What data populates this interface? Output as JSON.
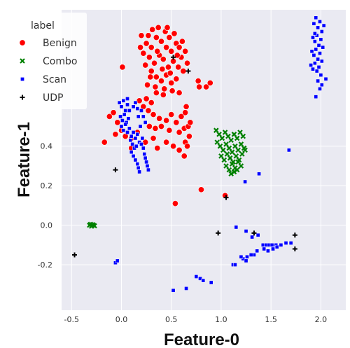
{
  "chart_data": {
    "type": "scatter",
    "xlabel": "Feature-0",
    "ylabel": "Feature-1",
    "xlim": [
      -0.6,
      2.25
    ],
    "ylim": [
      -0.43,
      1.09
    ],
    "x_ticks": [
      -0.5,
      0.0,
      0.5,
      1.0,
      1.5,
      2.0
    ],
    "y_ticks": [
      -0.2,
      0.0,
      0.2,
      0.4
    ],
    "x_tick_labels": [
      "-0.5",
      "0.0",
      "0.5",
      "1.0",
      "1.5",
      "2.0"
    ],
    "y_tick_labels": [
      "-0.2",
      "0.0",
      "0.2",
      "0.4"
    ],
    "grid": true,
    "legend": {
      "title": "label",
      "position": "top-left"
    },
    "series": [
      {
        "name": "Benign",
        "marker": "circle",
        "color": "#ff0000",
        "points": [
          [
            0.2,
            0.96
          ],
          [
            0.25,
            0.92
          ],
          [
            0.3,
            0.9
          ],
          [
            0.35,
            0.95
          ],
          [
            0.4,
            0.93
          ],
          [
            0.45,
            0.9
          ],
          [
            0.5,
            0.88
          ],
          [
            0.55,
            0.92
          ],
          [
            0.6,
            0.85
          ],
          [
            0.22,
            0.87
          ],
          [
            0.28,
            0.85
          ],
          [
            0.33,
            0.82
          ],
          [
            0.38,
            0.86
          ],
          [
            0.42,
            0.84
          ],
          [
            0.47,
            0.8
          ],
          [
            0.52,
            0.83
          ],
          [
            0.57,
            0.8
          ],
          [
            0.62,
            0.78
          ],
          [
            0.3,
            0.78
          ],
          [
            0.35,
            0.75
          ],
          [
            0.4,
            0.73
          ],
          [
            0.45,
            0.76
          ],
          [
            0.5,
            0.72
          ],
          [
            0.55,
            0.74
          ],
          [
            0.26,
            0.71
          ],
          [
            0.34,
            0.7
          ],
          [
            0.43,
            0.69
          ],
          [
            0.31,
            0.99
          ],
          [
            0.37,
            1.0
          ],
          [
            0.44,
            0.98
          ],
          [
            0.48,
            0.95
          ],
          [
            0.53,
            0.97
          ],
          [
            0.58,
            0.9
          ],
          [
            0.64,
            0.88
          ],
          [
            0.66,
            0.82
          ],
          [
            0.24,
            0.81
          ],
          [
            0.19,
            0.9
          ],
          [
            0.36,
            0.88
          ],
          [
            0.41,
            0.79
          ],
          [
            0.49,
            0.77
          ],
          [
            0.29,
            0.75
          ],
          [
            0.56,
            0.86
          ],
          [
            0.61,
            0.93
          ],
          [
            0.27,
            0.96
          ],
          [
            0.46,
            1.0
          ],
          [
            0.01,
            0.8
          ],
          [
            0.77,
            0.73
          ],
          [
            0.85,
            0.7
          ],
          [
            0.89,
            0.72
          ],
          [
            0.78,
            0.7
          ],
          [
            0.35,
            0.67
          ],
          [
            0.42,
            0.66
          ],
          [
            0.25,
            0.64
          ],
          [
            0.3,
            0.62
          ],
          [
            0.18,
            0.63
          ],
          [
            0.58,
            0.67
          ],
          [
            0.51,
            0.68
          ],
          [
            -0.12,
            0.55
          ],
          [
            -0.08,
            0.57
          ],
          [
            -0.04,
            0.52
          ],
          [
            0.22,
            0.6
          ],
          [
            0.27,
            0.58
          ],
          [
            0.32,
            0.56
          ],
          [
            0.38,
            0.54
          ],
          [
            0.45,
            0.53
          ],
          [
            0.5,
            0.56
          ],
          [
            0.55,
            0.52
          ],
          [
            0.6,
            0.55
          ],
          [
            0.64,
            0.57
          ],
          [
            0.65,
            0.6
          ],
          [
            0.28,
            0.5
          ],
          [
            0.34,
            0.49
          ],
          [
            0.4,
            0.5
          ],
          [
            0.48,
            0.48
          ],
          [
            0.58,
            0.47
          ],
          [
            0.63,
            0.49
          ],
          [
            0.67,
            0.5
          ],
          [
            0.69,
            0.52
          ],
          [
            -0.06,
            0.46
          ],
          [
            0.0,
            0.48
          ],
          [
            0.04,
            0.45
          ],
          [
            0.1,
            0.44
          ],
          [
            0.16,
            0.47
          ],
          [
            0.24,
            0.42
          ],
          [
            0.32,
            0.44
          ],
          [
            0.45,
            0.42
          ],
          [
            0.52,
            0.4
          ],
          [
            0.58,
            0.38
          ],
          [
            0.64,
            0.42
          ],
          [
            0.68,
            0.45
          ],
          [
            -0.17,
            0.42
          ],
          [
            0.1,
            0.39
          ],
          [
            0.36,
            0.39
          ],
          [
            0.63,
            0.35
          ],
          [
            0.66,
            0.4
          ],
          [
            0.8,
            0.18
          ],
          [
            1.04,
            0.15
          ],
          [
            0.54,
            0.11
          ]
        ]
      },
      {
        "name": "Combo",
        "marker": "x",
        "color": "#008000",
        "points": [
          [
            0.95,
            0.48
          ],
          [
            0.98,
            0.46
          ],
          [
            1.01,
            0.44
          ],
          [
            1.04,
            0.47
          ],
          [
            1.07,
            0.45
          ],
          [
            1.1,
            0.43
          ],
          [
            1.13,
            0.46
          ],
          [
            1.16,
            0.44
          ],
          [
            1.19,
            0.47
          ],
          [
            1.22,
            0.45
          ],
          [
            0.96,
            0.42
          ],
          [
            0.99,
            0.4
          ],
          [
            1.02,
            0.38
          ],
          [
            1.05,
            0.41
          ],
          [
            1.08,
            0.39
          ],
          [
            1.11,
            0.37
          ],
          [
            1.14,
            0.4
          ],
          [
            1.17,
            0.38
          ],
          [
            1.2,
            0.41
          ],
          [
            1.23,
            0.39
          ],
          [
            1.0,
            0.35
          ],
          [
            1.03,
            0.33
          ],
          [
            1.06,
            0.36
          ],
          [
            1.09,
            0.34
          ],
          [
            1.12,
            0.32
          ],
          [
            1.15,
            0.35
          ],
          [
            1.18,
            0.33
          ],
          [
            1.21,
            0.36
          ],
          [
            1.05,
            0.3
          ],
          [
            1.08,
            0.28
          ],
          [
            1.11,
            0.31
          ],
          [
            1.14,
            0.29
          ],
          [
            1.17,
            0.32
          ],
          [
            1.2,
            0.3
          ],
          [
            1.1,
            0.26
          ],
          [
            1.13,
            0.27
          ],
          [
            1.16,
            0.28
          ],
          [
            1.24,
            0.38
          ],
          [
            -0.32,
            0.0
          ],
          [
            -0.3,
            -0.005
          ],
          [
            -0.28,
            0.0
          ],
          [
            -0.31,
            0.005
          ],
          [
            -0.29,
            0.003
          ],
          [
            -0.27,
            -0.003
          ]
        ]
      },
      {
        "name": "Scan",
        "marker": "square",
        "color": "#0000ff",
        "points": [
          [
            1.93,
            1.02
          ],
          [
            1.95,
            1.05
          ],
          [
            1.97,
            1.0
          ],
          [
            1.99,
            1.03
          ],
          [
            2.01,
            0.98
          ],
          [
            2.03,
            1.01
          ],
          [
            1.92,
            0.95
          ],
          [
            1.94,
            0.93
          ],
          [
            1.96,
            0.96
          ],
          [
            1.98,
            0.91
          ],
          [
            2.0,
            0.94
          ],
          [
            2.02,
            0.9
          ],
          [
            1.91,
            0.88
          ],
          [
            1.93,
            0.86
          ],
          [
            1.95,
            0.89
          ],
          [
            1.97,
            0.84
          ],
          [
            1.99,
            0.87
          ],
          [
            2.01,
            0.83
          ],
          [
            1.9,
            0.81
          ],
          [
            1.92,
            0.79
          ],
          [
            1.94,
            0.82
          ],
          [
            1.96,
            0.78
          ],
          [
            1.98,
            0.8
          ],
          [
            2.0,
            0.76
          ],
          [
            1.97,
            0.73
          ],
          [
            2.01,
            0.71
          ],
          [
            1.99,
            0.69
          ],
          [
            1.95,
            0.65
          ],
          [
            2.05,
            0.74
          ],
          [
            1.94,
            0.97
          ],
          [
            -0.02,
            0.62
          ],
          [
            0.0,
            0.6
          ],
          [
            0.02,
            0.63
          ],
          [
            0.04,
            0.58
          ],
          [
            0.06,
            0.61
          ],
          [
            -0.01,
            0.55
          ],
          [
            0.01,
            0.53
          ],
          [
            0.03,
            0.56
          ],
          [
            0.05,
            0.52
          ],
          [
            0.07,
            0.54
          ],
          [
            0.0,
            0.5
          ],
          [
            0.02,
            0.48
          ],
          [
            0.04,
            0.51
          ],
          [
            0.06,
            0.47
          ],
          [
            0.08,
            0.49
          ],
          [
            0.1,
            0.45
          ],
          [
            0.12,
            0.47
          ],
          [
            0.14,
            0.44
          ],
          [
            0.16,
            0.46
          ],
          [
            0.18,
            0.42
          ],
          [
            0.09,
            0.43
          ],
          [
            0.11,
            0.41
          ],
          [
            0.13,
            0.39
          ],
          [
            0.15,
            0.4
          ],
          [
            0.1,
            0.37
          ],
          [
            0.12,
            0.35
          ],
          [
            0.14,
            0.33
          ],
          [
            0.16,
            0.31
          ],
          [
            0.17,
            0.29
          ],
          [
            0.18,
            0.27
          ],
          [
            0.2,
            0.41
          ],
          [
            0.22,
            0.39
          ],
          [
            0.23,
            0.36
          ],
          [
            0.24,
            0.34
          ],
          [
            0.25,
            0.32
          ],
          [
            0.26,
            0.3
          ],
          [
            0.27,
            0.28
          ],
          [
            0.21,
            0.44
          ],
          [
            0.19,
            0.5
          ],
          [
            0.17,
            0.55
          ],
          [
            0.2,
            0.58
          ],
          [
            0.22,
            0.55
          ],
          [
            0.24,
            0.52
          ],
          [
            0.08,
            0.58
          ],
          [
            0.06,
            0.64
          ],
          [
            0.12,
            0.6
          ],
          [
            0.14,
            0.62
          ],
          [
            0.16,
            0.59
          ],
          [
            1.68,
            0.38
          ],
          [
            1.38,
            0.26
          ],
          [
            1.24,
            0.22
          ],
          [
            1.15,
            -0.01
          ],
          [
            1.25,
            -0.03
          ],
          [
            1.37,
            -0.05
          ],
          [
            1.31,
            -0.06
          ],
          [
            1.42,
            -0.1
          ],
          [
            1.45,
            -0.1
          ],
          [
            1.48,
            -0.1
          ],
          [
            1.51,
            -0.1
          ],
          [
            1.55,
            -0.1
          ],
          [
            1.6,
            -0.1
          ],
          [
            1.65,
            -0.09
          ],
          [
            1.7,
            -0.09
          ],
          [
            1.43,
            -0.12
          ],
          [
            1.47,
            -0.13
          ],
          [
            1.52,
            -0.12
          ],
          [
            1.56,
            -0.11
          ],
          [
            1.36,
            -0.13
          ],
          [
            1.33,
            -0.15
          ],
          [
            1.3,
            -0.15
          ],
          [
            1.26,
            -0.16
          ],
          [
            1.22,
            -0.17
          ],
          [
            1.2,
            -0.16
          ],
          [
            1.25,
            -0.18
          ],
          [
            1.12,
            -0.2
          ],
          [
            1.14,
            -0.2
          ],
          [
            -0.06,
            -0.19
          ],
          [
            -0.04,
            -0.18
          ],
          [
            0.75,
            -0.26
          ],
          [
            0.79,
            -0.27
          ],
          [
            0.82,
            -0.28
          ],
          [
            0.9,
            -0.29
          ],
          [
            0.65,
            -0.32
          ],
          [
            0.52,
            -0.33
          ]
        ]
      },
      {
        "name": "UDP",
        "marker": "plus",
        "color": "#000000",
        "points": [
          [
            0.52,
            0.85
          ],
          [
            0.67,
            0.78
          ],
          [
            -0.06,
            0.28
          ],
          [
            1.05,
            0.14
          ],
          [
            0.97,
            -0.04
          ],
          [
            1.33,
            -0.04
          ],
          [
            1.74,
            -0.05
          ],
          [
            1.74,
            -0.12
          ],
          [
            -0.47,
            -0.15
          ]
        ]
      }
    ]
  }
}
